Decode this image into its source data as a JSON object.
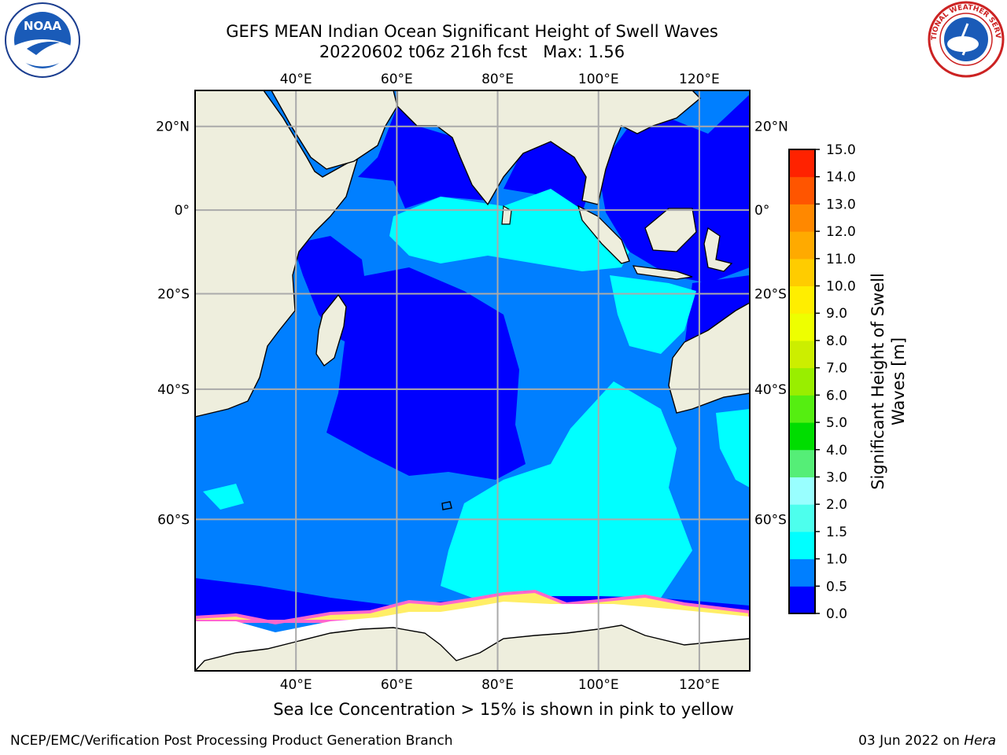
{
  "title_line1": "GEFS MEAN Indian Ocean Significant Height of Swell Waves",
  "title_line2": "20220602 t06z 216h fcst   Max: 1.56",
  "logos": {
    "left": "noaa-logo",
    "right": "nws-logo",
    "left_text": "NOAA",
    "right_text": "NATIONAL WEATHER SERVICE"
  },
  "map": {
    "lon_range": [
      20,
      130
    ],
    "lat_range": [
      -74,
      28
    ],
    "lon_ticks": [
      {
        "value": 40,
        "label": "40°E"
      },
      {
        "value": 60,
        "label": "60°E"
      },
      {
        "value": 80,
        "label": "80°E"
      },
      {
        "value": 100,
        "label": "100°E"
      },
      {
        "value": 120,
        "label": "120°E"
      }
    ],
    "lat_ticks": [
      {
        "value": 20,
        "label": "20°N"
      },
      {
        "value": 0,
        "label": "0°"
      },
      {
        "value": -20,
        "label": "20°S"
      },
      {
        "value": -40,
        "label": "40°S"
      },
      {
        "value": -60,
        "label": "60°S"
      }
    ],
    "grid": true,
    "colors": {
      "land": "#eeeedd",
      "coast": "#000000",
      "grid": "#aaaaaa",
      "ice_pink": "#ff66cc",
      "ice_yellow": "#ffee66"
    }
  },
  "colorbar": {
    "label": "Significant Height of Swell Waves [m]",
    "ticks": [
      "0.0",
      "0.5",
      "1.0",
      "1.5",
      "2.0",
      "3.0",
      "4.0",
      "5.0",
      "6.0",
      "7.0",
      "8.0",
      "9.0",
      "10.0",
      "11.0",
      "12.0",
      "13.0",
      "14.0",
      "15.0"
    ],
    "colors": [
      "#0000ff",
      "#007fff",
      "#00ffff",
      "#4dffed",
      "#99ffff",
      "#55ee77",
      "#00dd00",
      "#55ee11",
      "#99ee00",
      "#ccee00",
      "#eeff00",
      "#ffee00",
      "#ffcc00",
      "#ffaa00",
      "#ff8800",
      "#ff5500",
      "#ff2200"
    ]
  },
  "caption": "Sea Ice Concentration > 15% is shown in pink to yellow",
  "credit": "NCEP/EMC/Verification Post Processing Product Generation Branch",
  "datestamp_prefix": "03 Jun 2022 on ",
  "datestamp_host": "Hera"
}
